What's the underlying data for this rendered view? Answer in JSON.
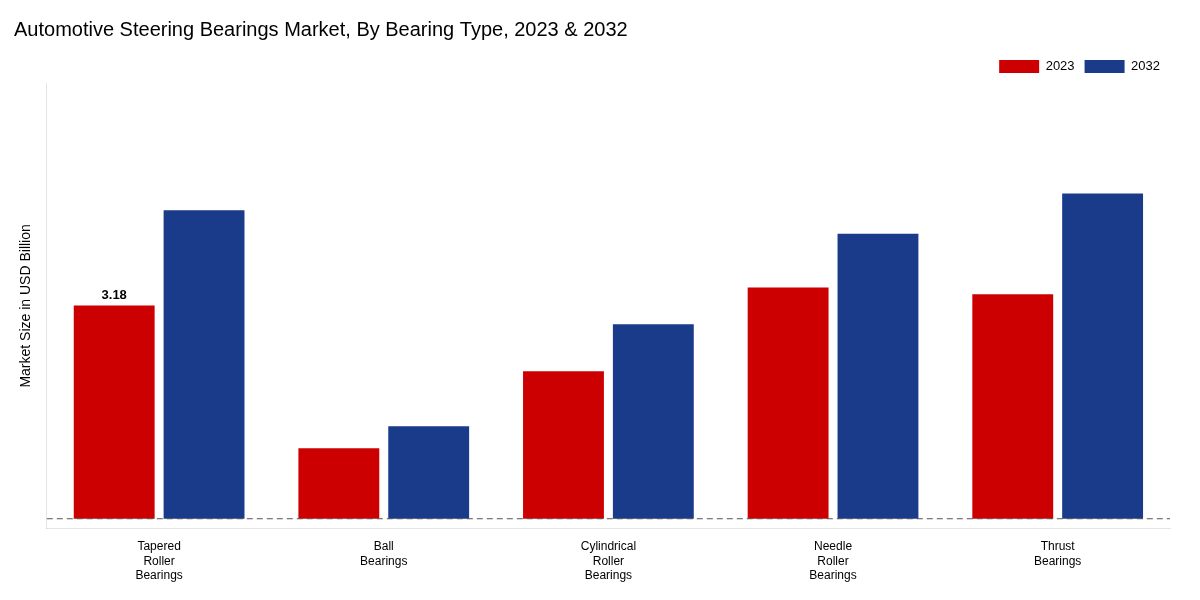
{
  "chart_data": {
    "type": "bar",
    "title": "Automotive Steering Bearings Market, By Bearing Type, 2023 & 2032",
    "ylabel": "Market Size in USD Billion",
    "categories": [
      "Tapered\nRoller\nBearings",
      "Ball\nBearings",
      "Cylindrical\nRoller\nBearings",
      "Needle\nRoller\nBearings",
      "Thrust\nBearings"
    ],
    "series": [
      {
        "name": "2023",
        "color": "#cc0000",
        "values": [
          3.18,
          1.05,
          2.2,
          3.45,
          3.35
        ]
      },
      {
        "name": "2032",
        "color": "#1a3a8a",
        "values": [
          4.6,
          1.38,
          2.9,
          4.25,
          4.85
        ]
      }
    ],
    "ylim": [
      -0.15,
      6.5
    ],
    "grid": false,
    "legend": "upper right",
    "tick_labels": "x",
    "annotations": [
      {
        "text": "3.18",
        "category": "Tapered\nRoller\nBearings",
        "series": "2023"
      }
    ],
    "hlines": [
      {
        "y": 0,
        "line_style": "dashed",
        "color": "#555555"
      }
    ]
  }
}
